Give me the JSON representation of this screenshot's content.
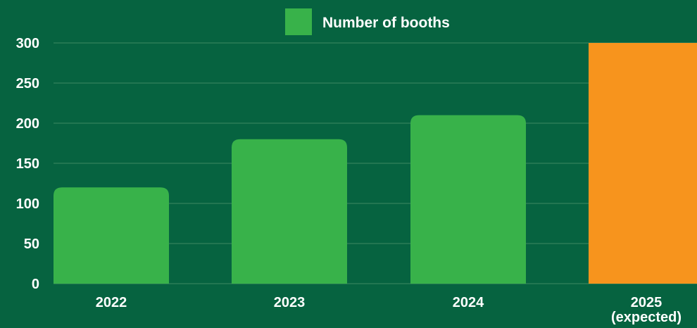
{
  "colors": {
    "background": "#066340",
    "bar": "#38B24A",
    "bar_expected": "#F7941D",
    "grid": "#3f8a62",
    "text": "#ffffff"
  },
  "chart_data": {
    "type": "bar",
    "categories": [
      "2022",
      "2023",
      "2024",
      "2025\n(expected)"
    ],
    "series": [
      {
        "name": "Number of booths",
        "values": [
          120,
          180,
          210,
          300
        ]
      }
    ],
    "expected_index": 3,
    "xlabel": "",
    "ylabel": "",
    "ylim": [
      0,
      300
    ],
    "yticks": [
      0,
      50,
      100,
      150,
      200,
      250,
      300
    ],
    "grid": true,
    "legend": "top-center"
  }
}
